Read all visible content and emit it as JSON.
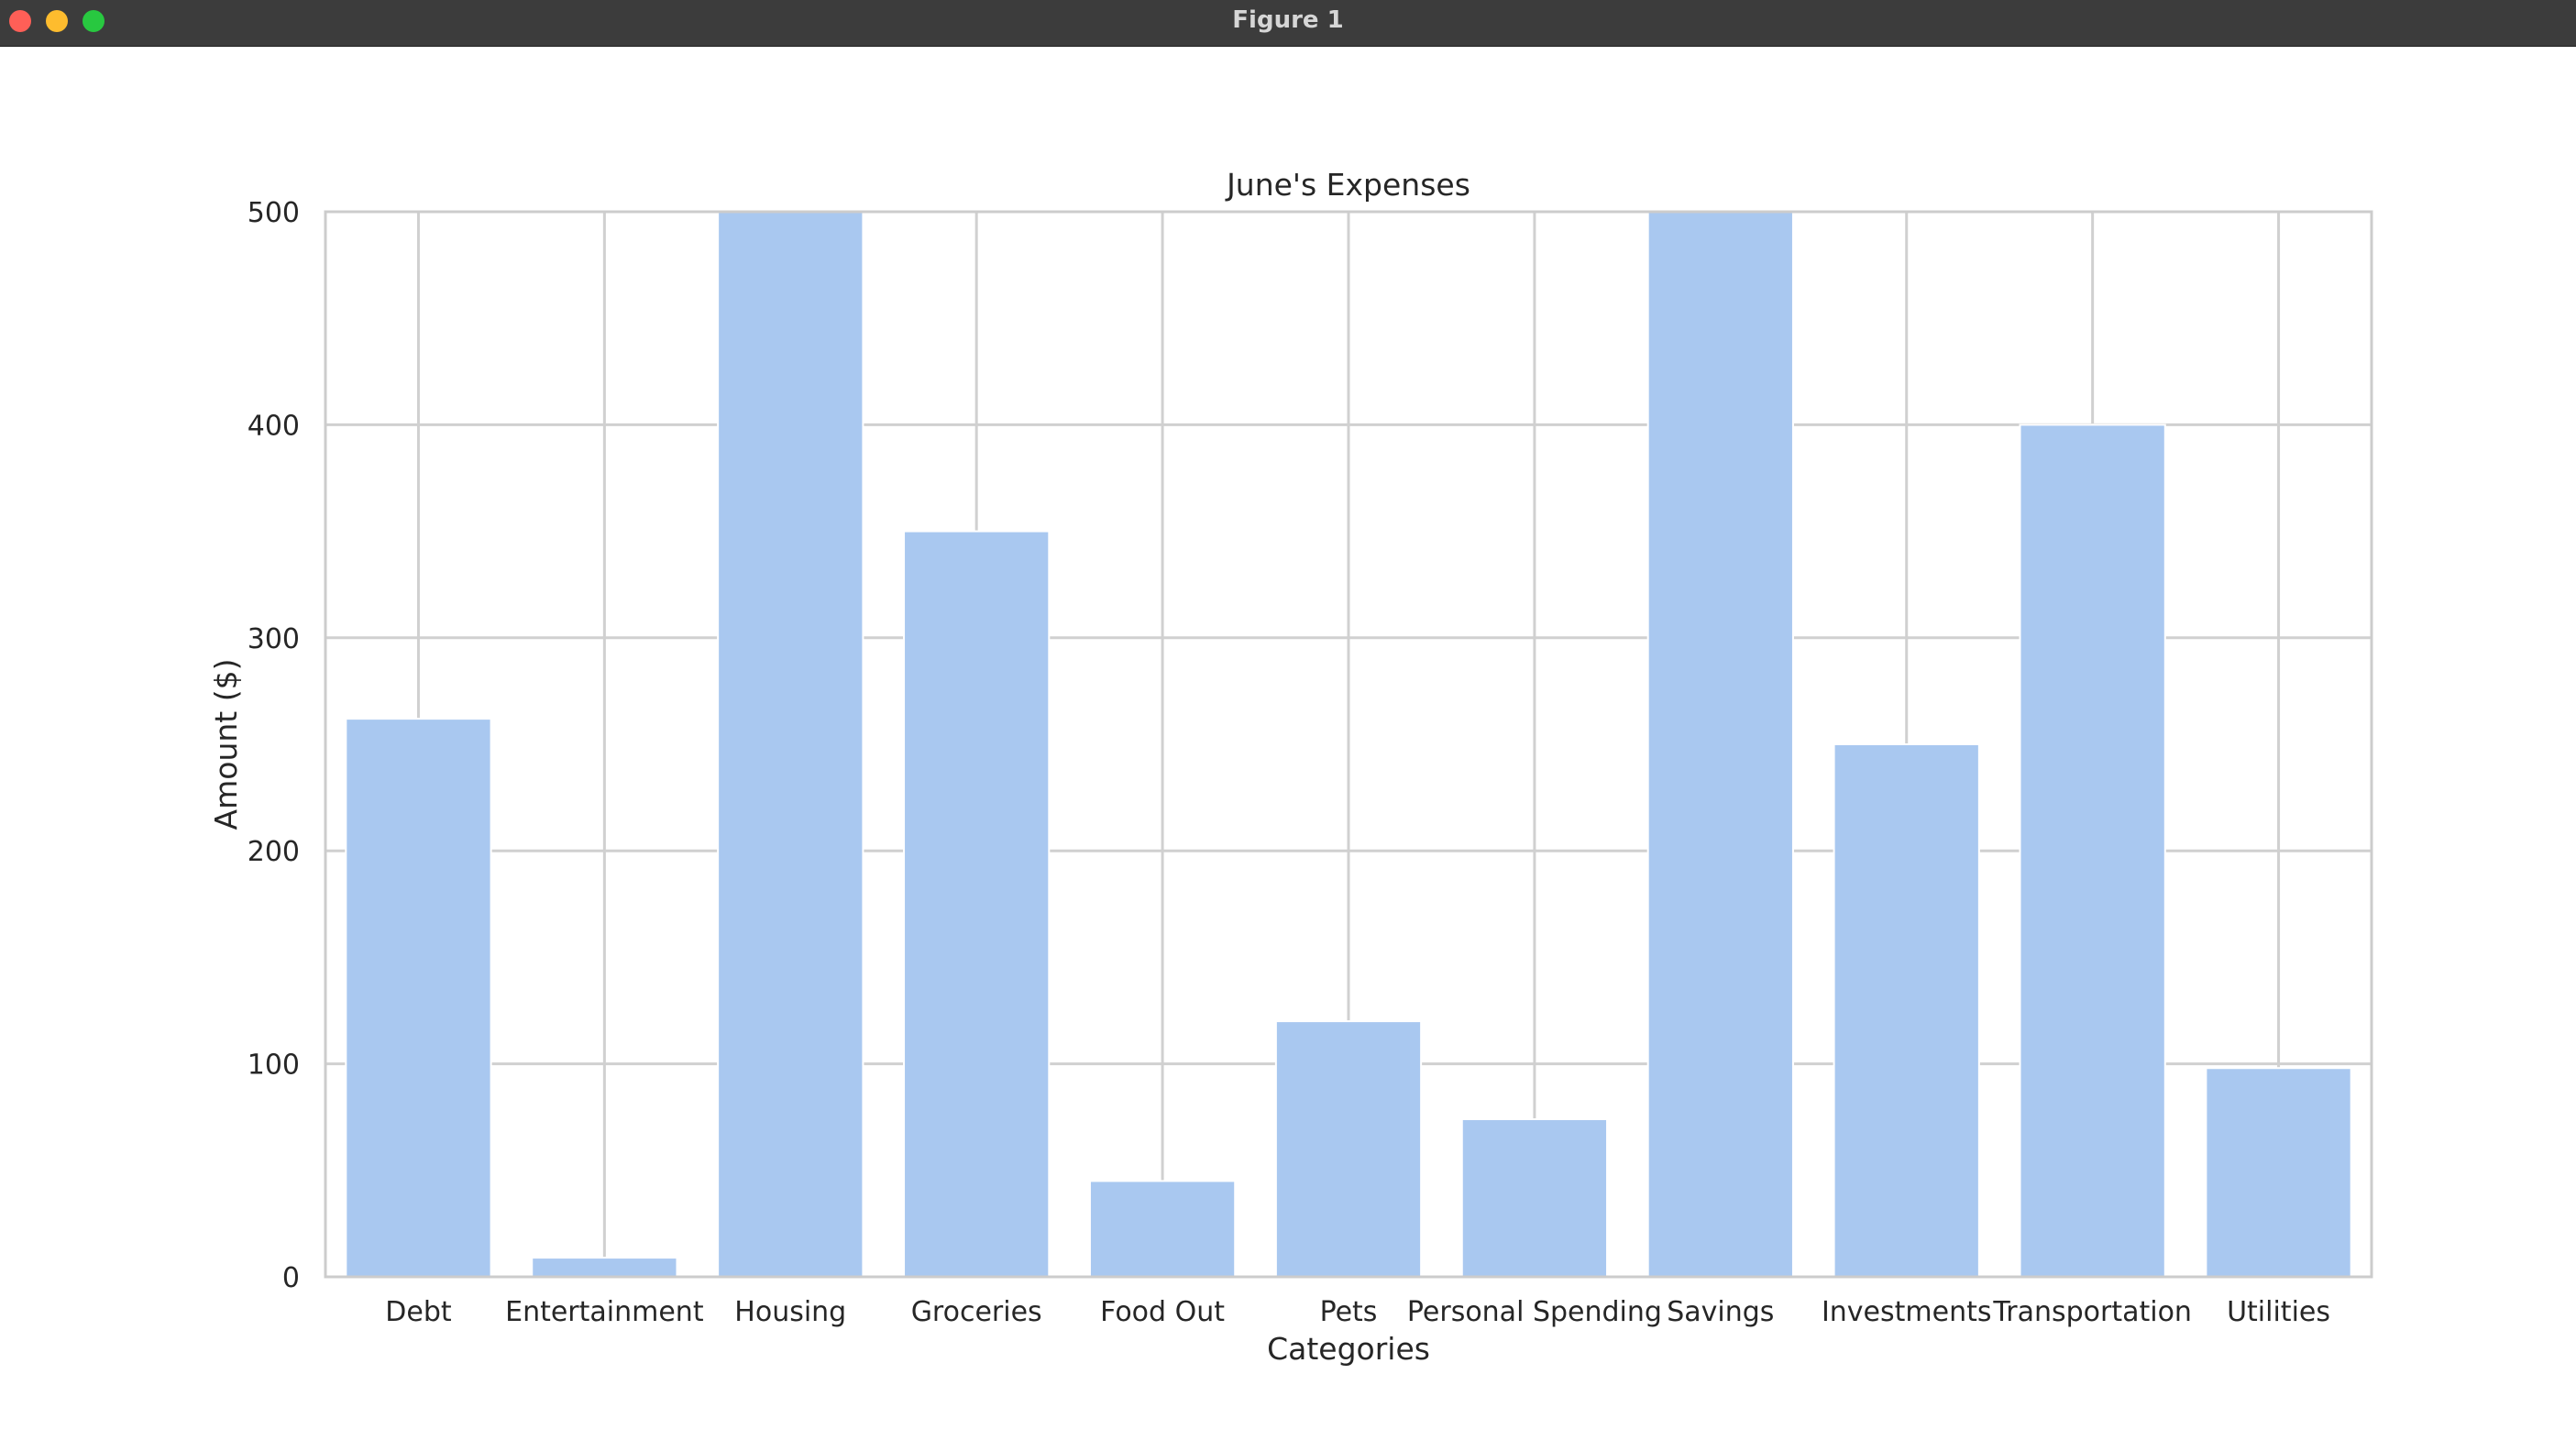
{
  "window": {
    "title": "Figure 1"
  },
  "colors": {
    "bar": "#a9c8f0",
    "grid": "#d0d0d0",
    "frame": "#cccccc",
    "text": "#262626"
  },
  "chart_data": {
    "type": "bar",
    "title": "June's Expenses",
    "xlabel": "Categories",
    "ylabel": "Amount ($)",
    "categories": [
      "Debt",
      "Entertainment",
      "Housing",
      "Groceries",
      "Food Out",
      "Pets",
      "Personal Spending",
      "Savings",
      "Investments",
      "Transportation",
      "Utilities"
    ],
    "values": [
      262,
      9,
      500,
      350,
      45,
      120,
      74,
      500,
      250,
      400,
      98
    ],
    "ylim": [
      0,
      500
    ],
    "yticks": [
      0,
      100,
      200,
      300,
      400,
      500
    ],
    "grid": true,
    "legend": "none"
  }
}
